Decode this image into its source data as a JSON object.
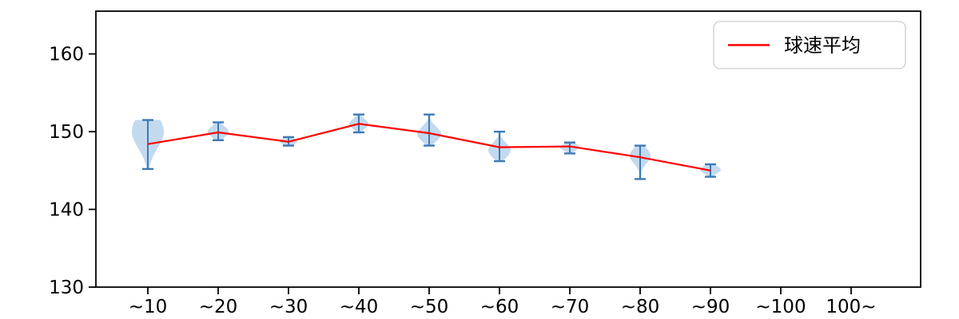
{
  "chart_data": {
    "type": "violin+line",
    "title": "",
    "xlabel": "",
    "ylabel": "",
    "categories": [
      "~10",
      "~20",
      "~30",
      "~40",
      "~50",
      "~60",
      "~70",
      "~80",
      "~90",
      "~100",
      "100~"
    ],
    "yticks": [
      130,
      140,
      150,
      160
    ],
    "ylim": [
      130,
      165.5
    ],
    "grid": false,
    "legend": {
      "label": "球速平均",
      "position": "upper right"
    },
    "series": [
      {
        "name": "球速平均",
        "type": "line",
        "values": [
          148.4,
          149.9,
          148.7,
          151.0,
          149.8,
          148.0,
          148.1,
          146.7,
          145.0,
          null,
          null
        ]
      }
    ],
    "violins": [
      {
        "category": "~10",
        "min": 145.2,
        "max": 151.5,
        "peak": 150.0,
        "halfwidth": 20,
        "sigma": 3.0
      },
      {
        "category": "~20",
        "min": 148.9,
        "max": 151.2,
        "peak": 150.0,
        "halfwidth": 13,
        "sigma": 1.0
      },
      {
        "category": "~30",
        "min": 148.2,
        "max": 149.3,
        "peak": 148.75,
        "halfwidth": 11,
        "sigma": 0.55
      },
      {
        "category": "~40",
        "min": 149.9,
        "max": 152.2,
        "peak": 151.0,
        "halfwidth": 12,
        "sigma": 0.9
      },
      {
        "category": "~50",
        "min": 148.2,
        "max": 152.2,
        "peak": 149.7,
        "halfwidth": 15,
        "sigma": 1.3
      },
      {
        "category": "~60",
        "min": 146.2,
        "max": 150.0,
        "peak": 147.6,
        "halfwidth": 14,
        "sigma": 1.3
      },
      {
        "category": "~70",
        "min": 147.2,
        "max": 148.6,
        "peak": 148.0,
        "halfwidth": 12,
        "sigma": 0.6
      },
      {
        "category": "~80",
        "min": 143.9,
        "max": 148.2,
        "peak": 146.9,
        "halfwidth": 13,
        "sigma": 1.4
      },
      {
        "category": "~90",
        "min": 144.2,
        "max": 145.8,
        "peak": 145.1,
        "halfwidth": 13,
        "sigma": 0.7
      },
      null,
      null
    ],
    "colors": {
      "violin_fill": "#c3d9ee",
      "violin_line": "#3d7ab5",
      "mean_line": "#ff0000",
      "frame": "#000000",
      "legend_border": "#cccccc",
      "background": "#ffffff"
    }
  }
}
